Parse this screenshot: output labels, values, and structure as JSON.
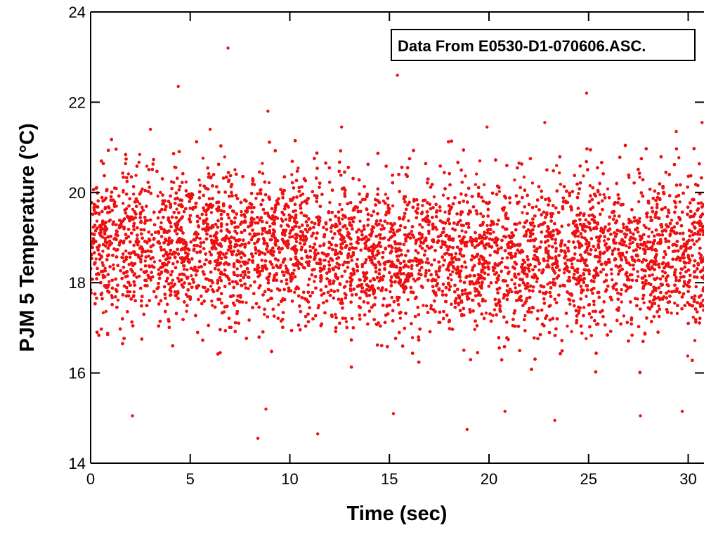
{
  "chart_data": {
    "type": "scatter",
    "xlabel": "Time (sec)",
    "ylabel": "PJM 5 Temperature (°C)",
    "xlim": [
      0,
      31
    ],
    "ylim": [
      14,
      24
    ],
    "x_ticks": [
      0,
      5,
      10,
      15,
      20,
      25,
      30
    ],
    "y_ticks": [
      14,
      16,
      18,
      20,
      22,
      24
    ],
    "grid": false,
    "annotation": "Data From E0530-D1-070606.ASC.",
    "colors": {
      "marker": "#ee1111",
      "axis": "#000000",
      "background": "#ffffff"
    },
    "series": [
      {
        "approx_mean_celsius": 18.8,
        "approx_std_celsius": 0.85,
        "x_start": 0,
        "x_end": 31,
        "point_count": 26000,
        "outliers": [
          {
            "x": 6.9,
            "y": 23.2
          },
          {
            "x": 4.4,
            "y": 22.35
          },
          {
            "x": 15.4,
            "y": 22.6
          },
          {
            "x": 24.9,
            "y": 22.2
          },
          {
            "x": 8.9,
            "y": 21.8
          },
          {
            "x": 3.0,
            "y": 21.4
          },
          {
            "x": 12.6,
            "y": 21.45
          },
          {
            "x": 22.8,
            "y": 21.55
          },
          {
            "x": 19.9,
            "y": 21.45
          },
          {
            "x": 30.7,
            "y": 21.55
          },
          {
            "x": 29.4,
            "y": 21.35
          },
          {
            "x": 6.0,
            "y": 21.4
          },
          {
            "x": 8.4,
            "y": 14.55
          },
          {
            "x": 11.4,
            "y": 14.65
          },
          {
            "x": 18.9,
            "y": 14.75
          },
          {
            "x": 2.1,
            "y": 15.05
          },
          {
            "x": 23.3,
            "y": 14.95
          },
          {
            "x": 27.6,
            "y": 15.05
          },
          {
            "x": 8.8,
            "y": 15.2
          },
          {
            "x": 15.2,
            "y": 15.1
          },
          {
            "x": 20.8,
            "y": 15.15
          },
          {
            "x": 29.7,
            "y": 15.15
          }
        ]
      }
    ]
  }
}
